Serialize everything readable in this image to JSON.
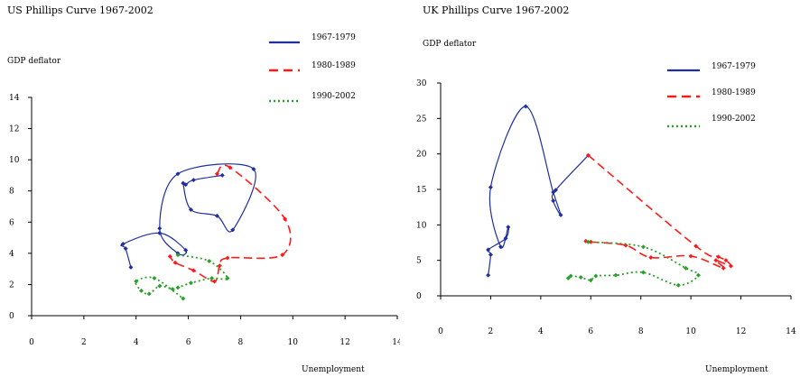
{
  "colors": {
    "series_1967_1979": "#1f2f9f",
    "series_1980_1989": "#ff1a1a",
    "series_1990_2002": "#2aa02a"
  },
  "chart_data": [
    {
      "type": "line",
      "title": "US Phillips Curve 1967-2002",
      "ylabel": "GDP deflator",
      "xlabel": "Unemployment",
      "xlim": [
        0,
        14
      ],
      "ylim": [
        0,
        14
      ],
      "xticks": [
        "0",
        "2",
        "4",
        "6",
        "8",
        "10",
        "12",
        "14"
      ],
      "yticks": [
        "0",
        "2",
        "4",
        "6",
        "8",
        "10",
        "12",
        "14"
      ],
      "legend": "top-right",
      "series": [
        {
          "name": "1967-1979",
          "color": "#1f2f9f",
          "style": "solid",
          "points": [
            [
              3.8,
              3.1
            ],
            [
              3.6,
              4.3
            ],
            [
              3.5,
              4.6
            ],
            [
              4.9,
              5.3
            ],
            [
              5.9,
              4.2
            ],
            [
              5.6,
              4.0
            ],
            [
              4.9,
              5.6
            ],
            [
              5.6,
              9.1
            ],
            [
              8.5,
              9.4
            ],
            [
              7.7,
              5.5
            ],
            [
              7.1,
              6.4
            ],
            [
              6.1,
              6.8
            ],
            [
              5.8,
              8.5
            ],
            [
              5.9,
              8.4
            ],
            [
              6.2,
              8.7
            ],
            [
              7.3,
              9.0
            ]
          ]
        },
        {
          "name": "1980-1989",
          "color": "#ff1a1a",
          "style": "dashed",
          "points": [
            [
              7.1,
              9.1
            ],
            [
              7.6,
              9.5
            ],
            [
              9.7,
              6.2
            ],
            [
              9.6,
              3.9
            ],
            [
              7.5,
              3.7
            ],
            [
              7.2,
              3.2
            ],
            [
              7.0,
              2.2
            ],
            [
              6.2,
              2.9
            ],
            [
              5.5,
              3.4
            ],
            [
              5.3,
              3.8
            ]
          ]
        },
        {
          "name": "1990-2002",
          "color": "#2aa02a",
          "style": "dotted",
          "points": [
            [
              5.6,
              3.9
            ],
            [
              6.8,
              3.5
            ],
            [
              7.5,
              2.4
            ],
            [
              6.9,
              2.4
            ],
            [
              6.1,
              2.1
            ],
            [
              5.6,
              1.8
            ],
            [
              5.4,
              1.7
            ],
            [
              4.9,
              1.9
            ],
            [
              4.5,
              1.4
            ],
            [
              4.2,
              1.6
            ],
            [
              4.0,
              2.2
            ],
            [
              4.7,
              2.4
            ],
            [
              5.8,
              1.1
            ]
          ]
        }
      ]
    },
    {
      "type": "line",
      "title": "UK Phillips Curve 1967-2002",
      "ylabel": "GDP deflator",
      "xlabel": "Unemployment",
      "xlim": [
        0,
        14
      ],
      "ylim": [
        0,
        30
      ],
      "xticks": [
        "0",
        "2",
        "4",
        "6",
        "8",
        "10",
        "12",
        "14"
      ],
      "yticks": [
        "0",
        "5",
        "10",
        "15",
        "20",
        "25",
        "30"
      ],
      "legend": "top-right",
      "series": [
        {
          "name": "1967-1979",
          "color": "#1f2f9f",
          "style": "solid",
          "points": [
            [
              1.9,
              2.9
            ],
            [
              2.0,
              5.8
            ],
            [
              1.9,
              6.5
            ],
            [
              2.6,
              8.1
            ],
            [
              2.7,
              9.7
            ],
            [
              2.4,
              6.9
            ],
            [
              2.0,
              15.3
            ],
            [
              3.4,
              26.7
            ],
            [
              4.5,
              14.6
            ],
            [
              4.8,
              11.4
            ],
            [
              4.5,
              13.4
            ],
            [
              4.6,
              14.9
            ],
            [
              5.9,
              19.8
            ]
          ]
        },
        {
          "name": "1980-1989",
          "color": "#ff1a1a",
          "style": "dashed",
          "points": [
            [
              5.9,
              19.8
            ],
            [
              10.2,
              7.0
            ],
            [
              11.1,
              5.5
            ],
            [
              11.4,
              5.0
            ],
            [
              11.6,
              4.2
            ],
            [
              11.0,
              5.0
            ],
            [
              11.3,
              3.9
            ],
            [
              10.0,
              5.6
            ],
            [
              8.4,
              5.4
            ],
            [
              7.4,
              7.1
            ],
            [
              6.0,
              7.6
            ],
            [
              5.8,
              7.7
            ]
          ]
        },
        {
          "name": "1990-2002",
          "color": "#2aa02a",
          "style": "dotted",
          "points": [
            [
              5.9,
              7.6
            ],
            [
              8.1,
              6.9
            ],
            [
              9.8,
              3.9
            ],
            [
              10.3,
              2.9
            ],
            [
              9.5,
              1.5
            ],
            [
              8.1,
              3.3
            ],
            [
              7.0,
              2.9
            ],
            [
              6.2,
              2.8
            ],
            [
              6.0,
              2.2
            ],
            [
              5.6,
              2.6
            ],
            [
              5.2,
              2.8
            ],
            [
              5.1,
              2.5
            ]
          ]
        }
      ]
    }
  ]
}
